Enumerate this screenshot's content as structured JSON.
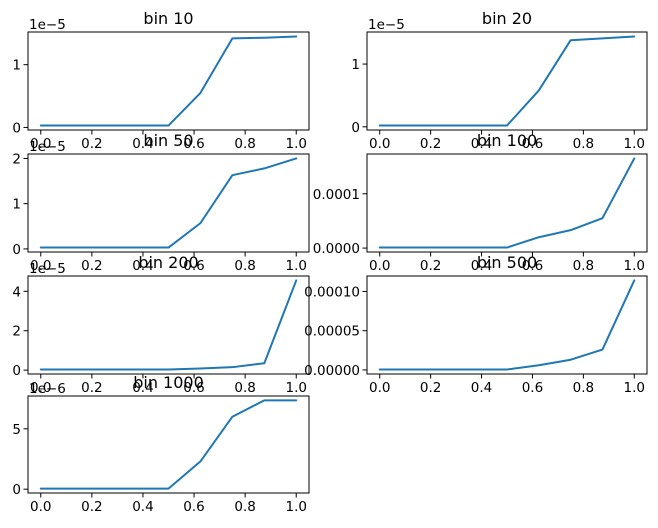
{
  "figure": {
    "background": "#ffffff",
    "line_color": "#1f77b4",
    "grid": {
      "rows": 4,
      "cols": 2,
      "grid_lines": false,
      "legend": null
    },
    "x_tick_values": [
      0.0,
      0.2,
      0.4,
      0.6,
      0.8,
      1.0
    ],
    "x_tick_labels": [
      "0.0",
      "0.2",
      "0.4",
      "0.6",
      "0.8",
      "1.0"
    ]
  },
  "chart_data": [
    {
      "type": "line",
      "title": "bin 10",
      "row": 0,
      "col": 0,
      "xlabel": "",
      "ylabel": "",
      "xlim": [
        -0.05,
        1.05
      ],
      "x": [
        0.0,
        0.25,
        0.5,
        0.625,
        0.75,
        0.875,
        1.0
      ],
      "y": [
        3e-07,
        3e-07,
        3e-07,
        5.5e-06,
        1.42e-05,
        1.43e-05,
        1.45e-05
      ],
      "y_ticks": [
        {
          "value": 0,
          "label": "0"
        },
        {
          "value": 1e-05,
          "label": "1"
        }
      ],
      "offset_text": "1e−5"
    },
    {
      "type": "line",
      "title": "bin 20",
      "row": 0,
      "col": 1,
      "xlabel": "",
      "ylabel": "",
      "xlim": [
        -0.05,
        1.05
      ],
      "x": [
        0.0,
        0.25,
        0.5,
        0.625,
        0.75,
        0.875,
        1.0
      ],
      "y": [
        2e-07,
        2e-07,
        2e-07,
        5.8e-06,
        1.38e-05,
        1.41e-05,
        1.44e-05
      ],
      "y_ticks": [
        {
          "value": 0,
          "label": "0"
        },
        {
          "value": 1e-05,
          "label": "1"
        }
      ],
      "offset_text": "1e−5"
    },
    {
      "type": "line",
      "title": "bin 50",
      "row": 1,
      "col": 0,
      "xlabel": "",
      "ylabel": "",
      "xlim": [
        -0.05,
        1.05
      ],
      "x": [
        0.0,
        0.25,
        0.5,
        0.625,
        0.75,
        0.875,
        1.0
      ],
      "y": [
        3e-07,
        3e-07,
        3e-07,
        5.7e-06,
        1.63e-05,
        1.78e-05,
        2e-05
      ],
      "y_ticks": [
        {
          "value": 0,
          "label": "0"
        },
        {
          "value": 1e-05,
          "label": "1"
        },
        {
          "value": 2e-05,
          "label": "2"
        }
      ],
      "offset_text": "1e−5"
    },
    {
      "type": "line",
      "title": "bin 100",
      "row": 1,
      "col": 1,
      "xlabel": "",
      "ylabel": "",
      "xlim": [
        -0.05,
        1.05
      ],
      "x": [
        0.0,
        0.25,
        0.5,
        0.625,
        0.75,
        0.875,
        1.0
      ],
      "y": [
        1e-06,
        1e-06,
        1e-06,
        2e-05,
        3.3e-05,
        5.5e-05,
        0.000165
      ],
      "y_ticks": [
        {
          "value": 0,
          "label": "0.0000"
        },
        {
          "value": 0.0001,
          "label": "0.0001"
        }
      ],
      "offset_text": null
    },
    {
      "type": "line",
      "title": "bin 200",
      "row": 2,
      "col": 0,
      "xlabel": "",
      "ylabel": "",
      "xlim": [
        -0.05,
        1.05
      ],
      "x": [
        0.0,
        0.25,
        0.5,
        0.625,
        0.75,
        0.875,
        1.0
      ],
      "y": [
        3e-07,
        3e-07,
        3e-07,
        8e-07,
        1.5e-06,
        3.5e-06,
        4.55e-05
      ],
      "y_ticks": [
        {
          "value": 0,
          "label": "0"
        },
        {
          "value": 2e-05,
          "label": "2"
        },
        {
          "value": 4e-05,
          "label": "4"
        }
      ],
      "offset_text": "1e−5"
    },
    {
      "type": "line",
      "title": "bin 500",
      "row": 2,
      "col": 1,
      "xlabel": "",
      "ylabel": "",
      "xlim": [
        -0.05,
        1.05
      ],
      "x": [
        0.0,
        0.25,
        0.5,
        0.625,
        0.75,
        0.875,
        1.0
      ],
      "y": [
        5e-07,
        5e-07,
        5e-07,
        6e-06,
        1.3e-05,
        2.6e-05,
        0.000114
      ],
      "y_ticks": [
        {
          "value": 0,
          "label": "0.00000"
        },
        {
          "value": 5e-05,
          "label": "0.00005"
        },
        {
          "value": 0.0001,
          "label": "0.00010"
        }
      ],
      "offset_text": null
    },
    {
      "type": "line",
      "title": "bin 1000",
      "row": 3,
      "col": 0,
      "xlabel": "",
      "ylabel": "",
      "xlim": [
        -0.05,
        1.05
      ],
      "x": [
        0.0,
        0.25,
        0.5,
        0.625,
        0.75,
        0.875,
        1.0
      ],
      "y": [
        5e-08,
        5e-08,
        5e-08,
        2.3e-06,
        6e-06,
        7.35e-06,
        7.35e-06
      ],
      "y_ticks": [
        {
          "value": 0,
          "label": "0"
        },
        {
          "value": 5e-06,
          "label": "5"
        }
      ],
      "offset_text": "1e−6"
    }
  ]
}
